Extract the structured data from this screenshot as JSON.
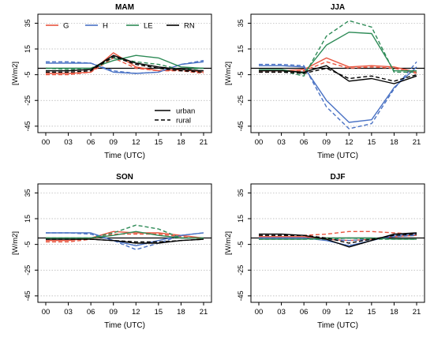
{
  "chart_data": [
    {
      "type": "line",
      "title": "MAM",
      "xlabel": "Time (UTC)",
      "ylabel": "[W/m2]",
      "x": [
        "00",
        "03",
        "06",
        "09",
        "12",
        "15",
        "18",
        "21"
      ],
      "yticks": [
        35,
        15,
        -5,
        -25,
        -45
      ],
      "ylim": [
        -50,
        42
      ],
      "grid": true,
      "legend": {
        "entries": [
          "G",
          "H",
          "LE",
          "RN"
        ],
        "placement": "top"
      },
      "style_legend": {
        "entries": [
          "urban",
          "rural"
        ],
        "placement": "bottom-right"
      },
      "series": [
        {
          "name": "G",
          "style": "urban",
          "color": "#E8553F",
          "values": [
            -4,
            -4,
            -3,
            12,
            1,
            -2,
            -1,
            -3
          ]
        },
        {
          "name": "G",
          "style": "rural",
          "color": "#E8553F",
          "values": [
            -5,
            -5,
            -3,
            8,
            0,
            -2,
            -2,
            -4
          ]
        },
        {
          "name": "H",
          "style": "urban",
          "color": "#4A72C4",
          "values": [
            4,
            4,
            4,
            -3,
            -4,
            -3,
            3,
            5
          ]
        },
        {
          "name": "H",
          "style": "rural",
          "color": "#4A72C4",
          "values": [
            5,
            5,
            4,
            -2,
            -4,
            -3,
            3,
            6
          ]
        },
        {
          "name": "LE",
          "style": "urban",
          "color": "#2E8B57",
          "values": [
            0,
            0,
            0,
            6,
            10,
            8,
            1,
            0
          ]
        },
        {
          "name": "LE",
          "style": "rural",
          "color": "#2E8B57",
          "values": [
            0,
            -1,
            0,
            8,
            5,
            3,
            -1,
            0
          ]
        },
        {
          "name": "RN",
          "style": "urban",
          "color": "#000000",
          "values": [
            -2,
            -2,
            -1,
            10,
            4,
            1,
            -1,
            -2
          ]
        },
        {
          "name": "RN",
          "style": "rural",
          "color": "#000000",
          "values": [
            -3,
            -3,
            -2,
            9,
            3,
            0,
            -2,
            -3
          ]
        }
      ]
    },
    {
      "type": "line",
      "title": "JJA",
      "xlabel": "Time (UTC)",
      "ylabel": "[W/m2]",
      "x": [
        "00",
        "03",
        "06",
        "09",
        "12",
        "15",
        "18",
        "21"
      ],
      "yticks": [
        35,
        15,
        -5,
        -25,
        -45
      ],
      "ylim": [
        -50,
        42
      ],
      "grid": true,
      "series": [
        {
          "name": "G",
          "style": "urban",
          "color": "#E8553F",
          "values": [
            -2,
            -2,
            -1,
            8,
            1,
            2,
            1,
            -3
          ]
        },
        {
          "name": "G",
          "style": "rural",
          "color": "#E8553F",
          "values": [
            -3,
            -3,
            -2,
            5,
            0,
            1,
            0,
            -4
          ]
        },
        {
          "name": "H",
          "style": "urban",
          "color": "#4A72C4",
          "values": [
            2,
            2,
            1,
            -25,
            -42,
            -40,
            -15,
            1
          ]
        },
        {
          "name": "H",
          "style": "rural",
          "color": "#4A72C4",
          "values": [
            3,
            3,
            2,
            -30,
            -47,
            -43,
            -16,
            5
          ]
        },
        {
          "name": "LE",
          "style": "urban",
          "color": "#2E8B57",
          "values": [
            -1,
            -1,
            -4,
            18,
            28,
            27,
            -2,
            -2
          ]
        },
        {
          "name": "LE",
          "style": "rural",
          "color": "#2E8B57",
          "values": [
            -2,
            -2,
            -6,
            25,
            37,
            32,
            -3,
            -3
          ]
        },
        {
          "name": "RN",
          "style": "urban",
          "color": "#000000",
          "values": [
            -2,
            -2,
            -3,
            2,
            -10,
            -8,
            -12,
            -6
          ]
        },
        {
          "name": "RN",
          "style": "rural",
          "color": "#000000",
          "values": [
            -3,
            -3,
            -4,
            0,
            -8,
            -6,
            -10,
            -5
          ]
        }
      ]
    },
    {
      "type": "line",
      "title": "SON",
      "xlabel": "Time (UTC)",
      "ylabel": "[W/m2]",
      "x": [
        "00",
        "03",
        "06",
        "09",
        "12",
        "15",
        "18",
        "21"
      ],
      "yticks": [
        35,
        15,
        -5,
        -25,
        -45
      ],
      "ylim": [
        -50,
        42
      ],
      "grid": true,
      "series": [
        {
          "name": "G",
          "style": "urban",
          "color": "#E8553F",
          "values": [
            -2,
            -2,
            0,
            5,
            4,
            4,
            2,
            0
          ]
        },
        {
          "name": "G",
          "style": "rural",
          "color": "#E8553F",
          "values": [
            -3,
            -3,
            -1,
            3,
            3,
            3,
            1,
            -1
          ]
        },
        {
          "name": "H",
          "style": "urban",
          "color": "#4A72C4",
          "values": [
            4,
            4,
            4,
            -2,
            -6,
            -2,
            2,
            4
          ]
        },
        {
          "name": "H",
          "style": "rural",
          "color": "#4A72C4",
          "values": [
            4,
            4,
            3,
            -2,
            -9,
            -4,
            2,
            4
          ]
        },
        {
          "name": "LE",
          "style": "urban",
          "color": "#2E8B57",
          "values": [
            0,
            0,
            0,
            2,
            5,
            2,
            0,
            0
          ]
        },
        {
          "name": "LE",
          "style": "rural",
          "color": "#2E8B57",
          "values": [
            0,
            0,
            0,
            4,
            10,
            7,
            0,
            0
          ]
        },
        {
          "name": "RN",
          "style": "urban",
          "color": "#000000",
          "values": [
            -1,
            -1,
            -1,
            -2,
            -4,
            -4,
            -2,
            -1
          ]
        },
        {
          "name": "RN",
          "style": "rural",
          "color": "#000000",
          "values": [
            -1,
            -1,
            -1,
            -2,
            -3,
            -3,
            -2,
            -1
          ]
        }
      ]
    },
    {
      "type": "line",
      "title": "DJF",
      "xlabel": "Time (UTC)",
      "ylabel": "[W/m2]",
      "x": [
        "00",
        "03",
        "06",
        "09",
        "12",
        "15",
        "18",
        "21"
      ],
      "yticks": [
        35,
        15,
        -5,
        -25,
        -45
      ],
      "ylim": [
        -50,
        42
      ],
      "grid": true,
      "series": [
        {
          "name": "G",
          "style": "urban",
          "color": "#E8553F",
          "values": [
            1,
            1,
            1,
            -1,
            -2,
            -1,
            1,
            2
          ]
        },
        {
          "name": "G",
          "style": "rural",
          "color": "#E8553F",
          "values": [
            2,
            2,
            2,
            3,
            5,
            5,
            4,
            3
          ]
        },
        {
          "name": "H",
          "style": "urban",
          "color": "#4A72C4",
          "values": [
            0,
            0,
            0,
            -2,
            -6,
            -2,
            2,
            3
          ]
        },
        {
          "name": "H",
          "style": "rural",
          "color": "#4A72C4",
          "values": [
            0,
            0,
            0,
            -1,
            -2,
            -1,
            1,
            2
          ]
        },
        {
          "name": "LE",
          "style": "urban",
          "color": "#2E8B57",
          "values": [
            -1,
            -1,
            -1,
            0,
            0,
            0,
            -1,
            -1
          ]
        },
        {
          "name": "LE",
          "style": "rural",
          "color": "#2E8B57",
          "values": [
            -1,
            -1,
            -1,
            -1,
            0,
            -1,
            -1,
            -1
          ]
        },
        {
          "name": "RN",
          "style": "urban",
          "color": "#000000",
          "values": [
            3,
            3,
            2,
            -1,
            -7,
            -2,
            3,
            4
          ]
        },
        {
          "name": "RN",
          "style": "rural",
          "color": "#000000",
          "values": [
            2,
            2,
            2,
            0,
            -4,
            -1,
            2,
            3
          ]
        }
      ]
    }
  ]
}
